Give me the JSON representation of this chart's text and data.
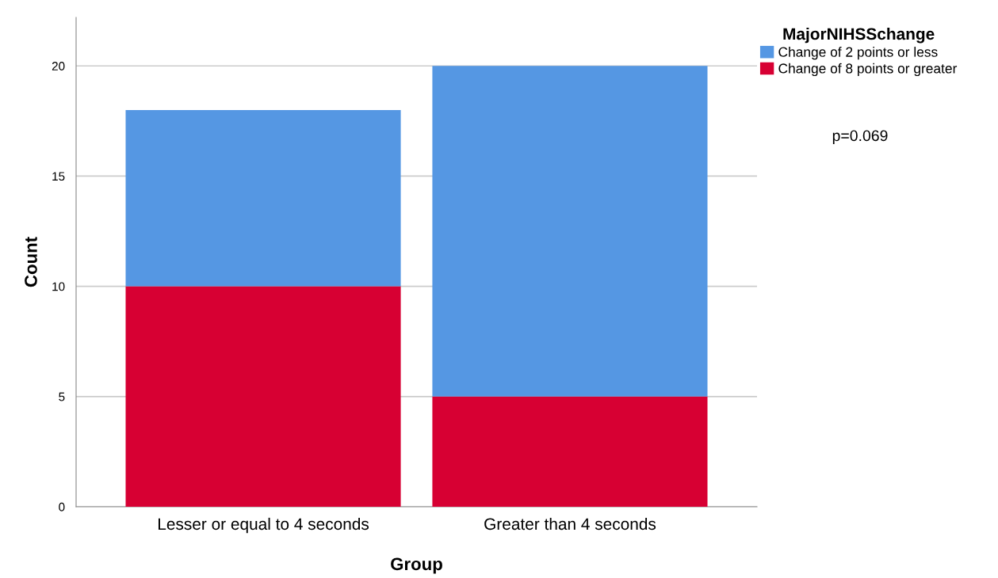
{
  "chart_data": {
    "type": "bar",
    "stacked": true,
    "xlabel": "Group",
    "ylabel": "Count",
    "legend_title": "MajorNIHSSchange",
    "categories": [
      "Lesser or equal to 4 seconds",
      "Greater than 4 seconds"
    ],
    "series": [
      {
        "name": "Change of 8 points or greater",
        "color": "#d70033",
        "values": [
          10,
          5
        ]
      },
      {
        "name": "Change of 2 points or less",
        "color": "#5597e3",
        "values": [
          8,
          15
        ]
      }
    ],
    "ylim": [
      0,
      22.2
    ],
    "yticks": [
      0,
      5,
      10,
      15,
      20
    ],
    "grid": "y",
    "legend": "top right",
    "annotations": [
      "p=0.069"
    ]
  }
}
